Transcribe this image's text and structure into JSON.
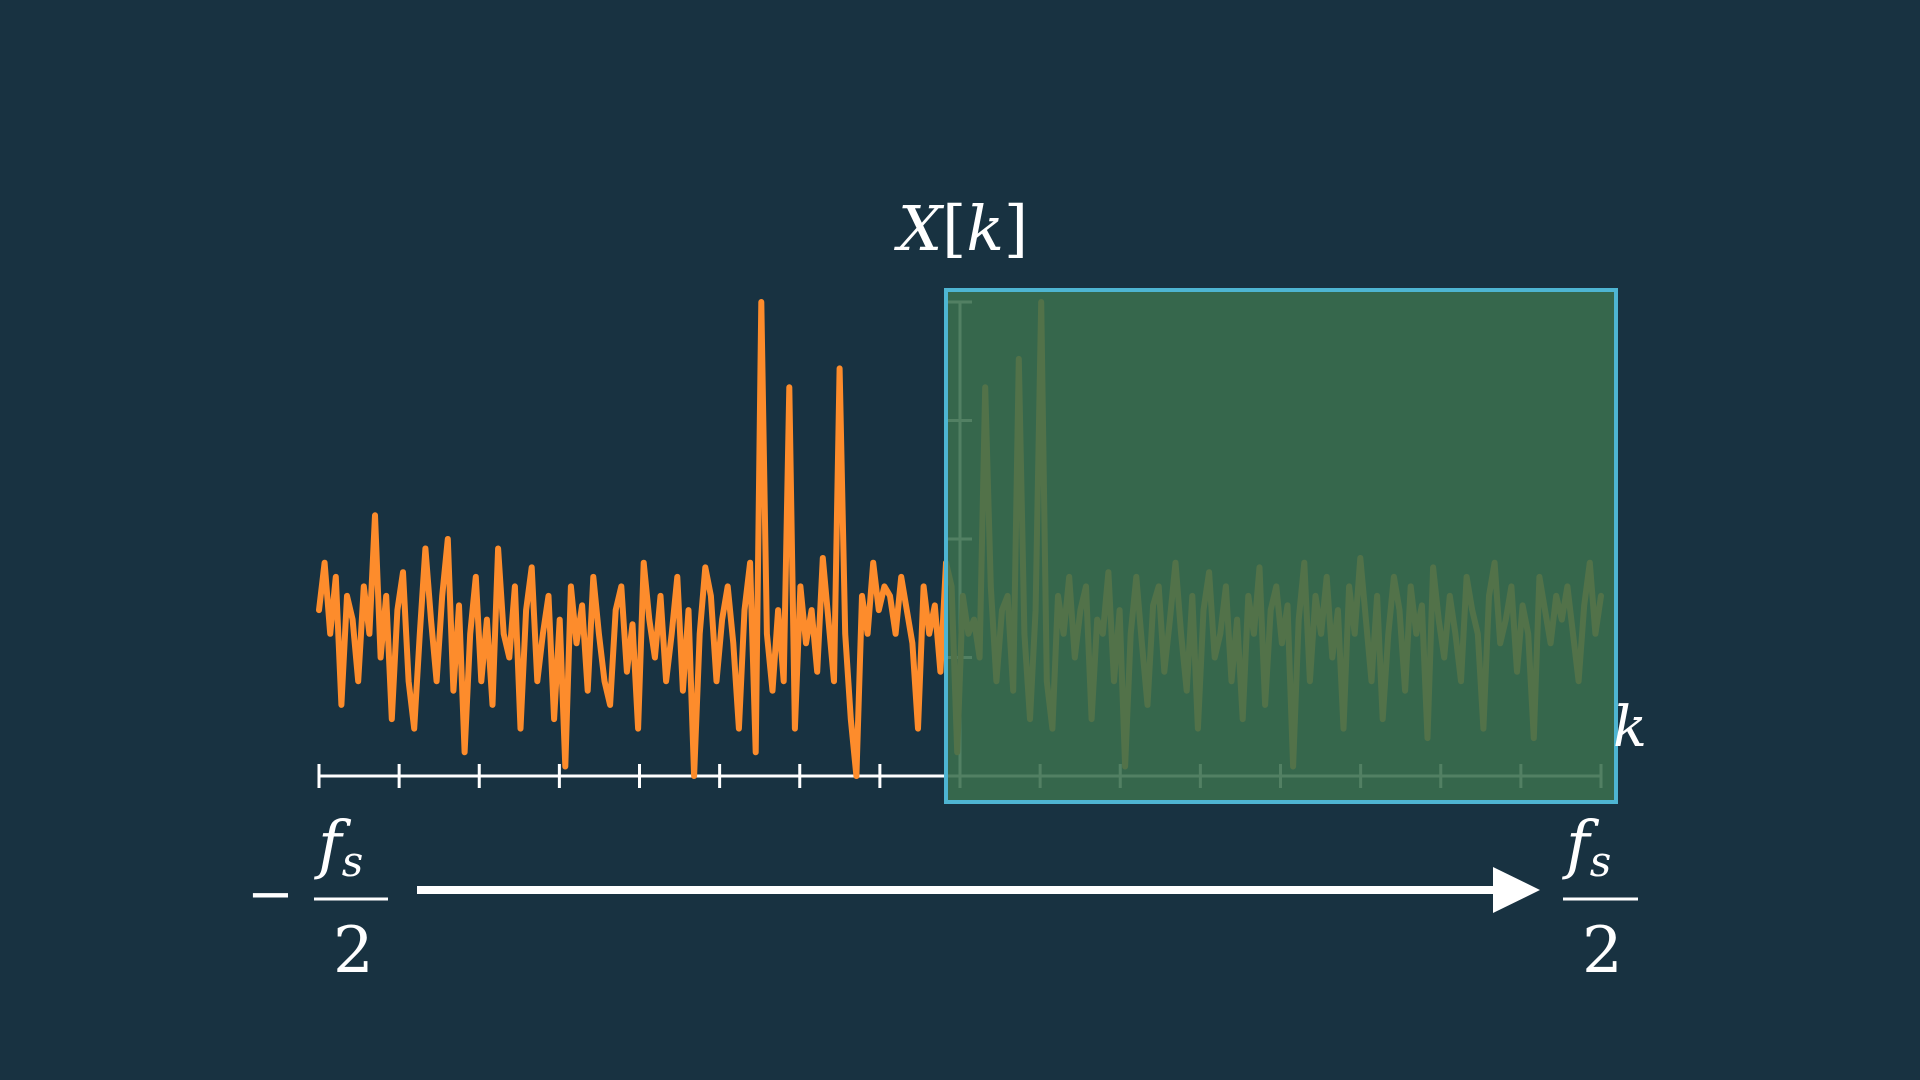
{
  "colors": {
    "background": "#183241",
    "signal": "#fd8c2c",
    "highlight_fill": "#3a6e4d",
    "highlight_fill_opacity": 0.88,
    "highlight_border": "#4eb5d2",
    "axis": "#ffffff"
  },
  "labels": {
    "y_label_var": "X",
    "y_label_open": "[",
    "y_label_index": "k",
    "y_label_close": "]",
    "x_label": "k",
    "left_sign": "−",
    "left_num": "f",
    "left_sub": "s",
    "left_den": "2",
    "right_num": "f",
    "right_sub": "s",
    "right_den": "2"
  },
  "chart_data": {
    "type": "line",
    "series": [
      {
        "values": [
          0.35,
          0.45,
          0.3,
          0.42,
          0.15,
          0.38,
          0.33,
          0.2,
          0.4,
          0.3,
          0.55,
          0.25,
          0.38,
          0.12,
          0.35,
          0.43,
          0.2,
          0.1,
          0.3,
          0.48,
          0.33,
          0.2,
          0.38,
          0.5,
          0.18,
          0.36,
          0.05,
          0.3,
          0.42,
          0.2,
          0.33,
          0.15,
          0.48,
          0.3,
          0.25,
          0.4,
          0.1,
          0.35,
          0.44,
          0.2,
          0.3,
          0.38,
          0.12,
          0.33,
          0.02,
          0.4,
          0.28,
          0.36,
          0.18,
          0.42,
          0.3,
          0.2,
          0.15,
          0.35,
          0.4,
          0.22,
          0.32,
          0.1,
          0.45,
          0.33,
          0.25,
          0.38,
          0.2,
          0.3,
          0.42,
          0.18,
          0.35,
          0.0,
          0.3,
          0.44,
          0.38,
          0.2,
          0.33,
          0.4,
          0.28,
          0.1,
          0.35,
          0.45,
          0.05,
          1.0,
          0.3,
          0.18,
          0.35,
          0.2,
          0.82,
          0.1,
          0.4,
          0.28,
          0.35,
          0.22,
          0.46,
          0.33,
          0.2,
          0.86,
          0.3,
          0.12,
          0.0,
          0.38,
          0.3,
          0.45,
          0.35,
          0.4,
          0.38,
          0.3,
          0.42,
          0.35,
          0.28,
          0.1,
          0.4,
          0.3,
          0.36,
          0.22,
          0.45,
          0.4,
          0.05,
          0.38,
          0.3,
          0.33,
          0.25,
          0.82,
          0.4,
          0.2,
          0.35,
          0.38,
          0.18,
          0.88,
          0.3,
          0.12,
          0.35,
          1.0,
          0.2,
          0.1,
          0.38,
          0.3,
          0.42,
          0.25,
          0.35,
          0.4,
          0.12,
          0.33,
          0.3,
          0.43,
          0.2,
          0.35,
          0.02,
          0.3,
          0.42,
          0.28,
          0.15,
          0.36,
          0.4,
          0.22,
          0.33,
          0.45,
          0.3,
          0.18,
          0.38,
          0.1,
          0.35,
          0.43,
          0.25,
          0.3,
          0.4,
          0.2,
          0.33,
          0.12,
          0.38,
          0.3,
          0.44,
          0.15,
          0.35,
          0.4,
          0.28,
          0.36,
          0.02,
          0.33,
          0.45,
          0.2,
          0.38,
          0.3,
          0.42,
          0.25,
          0.35,
          0.1,
          0.4,
          0.3,
          0.46,
          0.33,
          0.2,
          0.38,
          0.12,
          0.3,
          0.42,
          0.35,
          0.18,
          0.4,
          0.3,
          0.36,
          0.08,
          0.44,
          0.33,
          0.25,
          0.38,
          0.3,
          0.2,
          0.42,
          0.35,
          0.3,
          0.1,
          0.38,
          0.45,
          0.28,
          0.33,
          0.4,
          0.22,
          0.36,
          0.3,
          0.08,
          0.42,
          0.35,
          0.28,
          0.38,
          0.33,
          0.4,
          0.3,
          0.2,
          0.36,
          0.45,
          0.3,
          0.38
        ]
      }
    ],
    "ylim": [
      0,
      1
    ],
    "x_tick_count": 17,
    "y_tick_count": 5,
    "highlight_start_fraction": 0.5
  }
}
